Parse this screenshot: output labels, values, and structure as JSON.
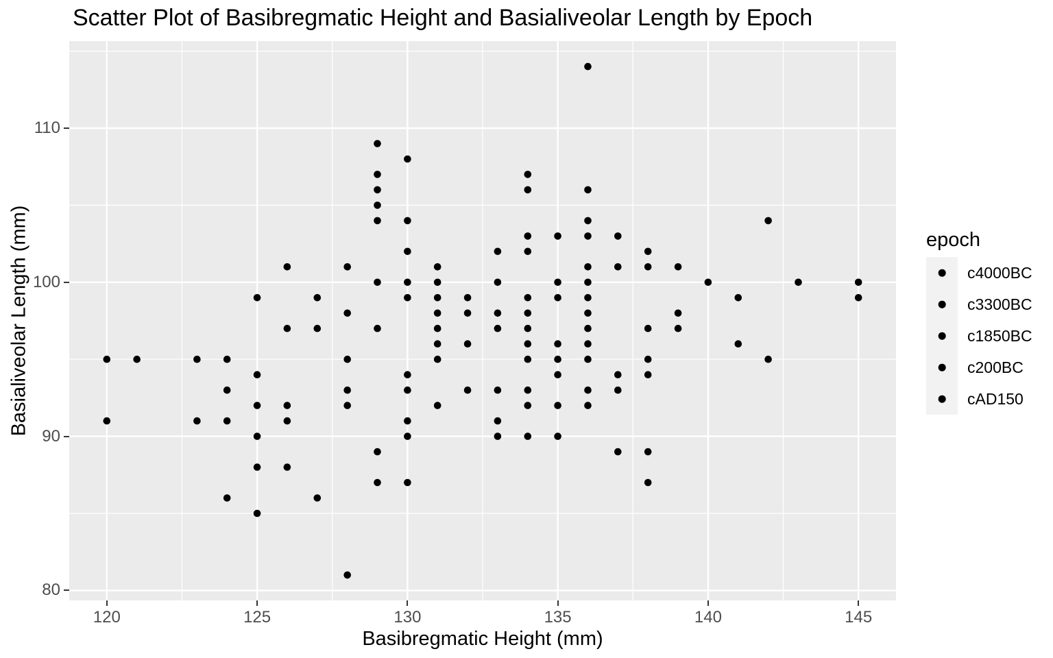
{
  "chart_data": {
    "type": "scatter",
    "title": "Scatter Plot of Basibregmatic Height and Basialiveolar Length by Epoch",
    "xlabel": "Basibregmatic Height (mm)",
    "ylabel": "Basialiveolar Length (mm)",
    "xlim": [
      118.75,
      146.25
    ],
    "ylim": [
      79.35,
      115.65
    ],
    "x_ticks": [
      120,
      125,
      130,
      135,
      140,
      145
    ],
    "y_ticks": [
      80,
      90,
      100,
      110
    ],
    "x_minor_ticks": [
      122.5,
      127.5,
      132.5,
      137.5,
      142.5
    ],
    "y_minor_ticks": [
      85,
      95,
      105,
      115
    ],
    "grid": "on",
    "panel_background": "#EBEBEB",
    "grid_color": "#FFFFFF",
    "point_color": "#000000",
    "tick_label_color": "#4D4D4D",
    "legend": {
      "title": "epoch",
      "position": "right",
      "entries": [
        {
          "label": "c4000BC",
          "marker": "point",
          "color": "#000000"
        },
        {
          "label": "c3300BC",
          "marker": "point",
          "color": "#000000"
        },
        {
          "label": "c1850BC",
          "marker": "point",
          "color": "#000000"
        },
        {
          "label": "c200BC",
          "marker": "point",
          "color": "#000000"
        },
        {
          "label": "cAD150",
          "marker": "point",
          "color": "#000000"
        }
      ]
    },
    "points": [
      [
        136,
        114
      ],
      [
        129,
        109
      ],
      [
        130,
        108
      ],
      [
        129,
        107
      ],
      [
        134,
        107
      ],
      [
        129,
        106
      ],
      [
        134,
        106
      ],
      [
        136,
        106
      ],
      [
        129,
        105
      ],
      [
        129,
        104
      ],
      [
        130,
        104
      ],
      [
        136,
        104
      ],
      [
        142,
        104
      ],
      [
        134,
        103
      ],
      [
        135,
        103
      ],
      [
        136,
        103
      ],
      [
        137,
        103
      ],
      [
        130,
        102
      ],
      [
        133,
        102
      ],
      [
        134,
        102
      ],
      [
        138,
        102
      ],
      [
        126,
        101
      ],
      [
        128,
        101
      ],
      [
        131,
        101
      ],
      [
        136,
        101
      ],
      [
        137,
        101
      ],
      [
        138,
        101
      ],
      [
        139,
        101
      ],
      [
        129,
        100
      ],
      [
        130,
        100
      ],
      [
        131,
        100
      ],
      [
        133,
        100
      ],
      [
        135,
        100
      ],
      [
        136,
        100
      ],
      [
        140,
        100
      ],
      [
        143,
        100
      ],
      [
        145,
        100
      ],
      [
        125,
        99
      ],
      [
        127,
        99
      ],
      [
        130,
        99
      ],
      [
        131,
        99
      ],
      [
        132,
        99
      ],
      [
        134,
        99
      ],
      [
        135,
        99
      ],
      [
        136,
        99
      ],
      [
        141,
        99
      ],
      [
        145,
        99
      ],
      [
        128,
        98
      ],
      [
        131,
        98
      ],
      [
        132,
        98
      ],
      [
        133,
        98
      ],
      [
        134,
        98
      ],
      [
        136,
        98
      ],
      [
        139,
        98
      ],
      [
        126,
        97
      ],
      [
        127,
        97
      ],
      [
        129,
        97
      ],
      [
        131,
        97
      ],
      [
        133,
        97
      ],
      [
        134,
        97
      ],
      [
        136,
        97
      ],
      [
        138,
        97
      ],
      [
        139,
        97
      ],
      [
        131,
        96
      ],
      [
        132,
        96
      ],
      [
        134,
        96
      ],
      [
        135,
        96
      ],
      [
        136,
        96
      ],
      [
        141,
        96
      ],
      [
        120,
        95
      ],
      [
        121,
        95
      ],
      [
        123,
        95
      ],
      [
        124,
        95
      ],
      [
        128,
        95
      ],
      [
        131,
        95
      ],
      [
        134,
        95
      ],
      [
        135,
        95
      ],
      [
        136,
        95
      ],
      [
        138,
        95
      ],
      [
        142,
        95
      ],
      [
        125,
        94
      ],
      [
        130,
        94
      ],
      [
        135,
        94
      ],
      [
        137,
        94
      ],
      [
        138,
        94
      ],
      [
        124,
        93
      ],
      [
        128,
        93
      ],
      [
        130,
        93
      ],
      [
        132,
        93
      ],
      [
        133,
        93
      ],
      [
        134,
        93
      ],
      [
        136,
        93
      ],
      [
        137,
        93
      ],
      [
        125,
        92
      ],
      [
        126,
        92
      ],
      [
        128,
        92
      ],
      [
        131,
        92
      ],
      [
        134,
        92
      ],
      [
        135,
        92
      ],
      [
        136,
        92
      ],
      [
        120,
        91
      ],
      [
        123,
        91
      ],
      [
        124,
        91
      ],
      [
        126,
        91
      ],
      [
        130,
        91
      ],
      [
        133,
        91
      ],
      [
        125,
        90
      ],
      [
        130,
        90
      ],
      [
        133,
        90
      ],
      [
        134,
        90
      ],
      [
        135,
        90
      ],
      [
        129,
        89
      ],
      [
        137,
        89
      ],
      [
        138,
        89
      ],
      [
        125,
        88
      ],
      [
        126,
        88
      ],
      [
        129,
        87
      ],
      [
        130,
        87
      ],
      [
        138,
        87
      ],
      [
        124,
        86
      ],
      [
        127,
        86
      ],
      [
        125,
        85
      ],
      [
        128,
        81
      ]
    ]
  }
}
